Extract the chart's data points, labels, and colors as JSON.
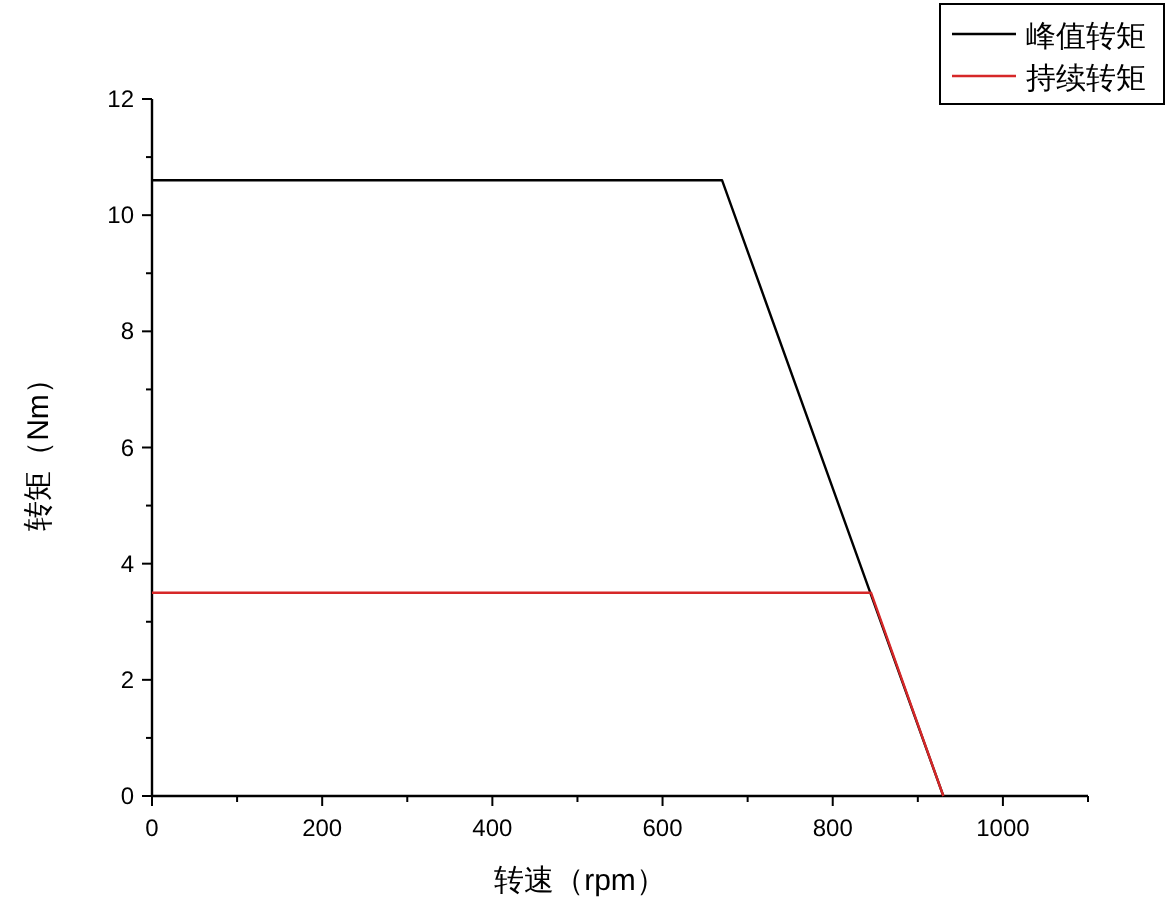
{
  "chart_data": {
    "type": "line",
    "xlabel": "转速（rpm）",
    "ylabel": "转矩（Nm）",
    "xlim": [
      0,
      1100
    ],
    "xticks": [
      0,
      200,
      400,
      600,
      800,
      1000
    ],
    "ylim": [
      0,
      12
    ],
    "yticks": [
      0,
      2,
      4,
      6,
      8,
      10,
      12
    ],
    "grid": false,
    "legend": "top right",
    "marker": "none",
    "line_style": "solid",
    "series": [
      {
        "name": "峰值转矩",
        "color": "#000000",
        "x": [
          0,
          670,
          930
        ],
        "values": [
          10.6,
          10.6,
          0
        ]
      },
      {
        "name": "持续转矩",
        "color": "#d62728",
        "x": [
          0,
          845,
          930
        ],
        "values": [
          3.5,
          3.5,
          0
        ]
      }
    ]
  }
}
